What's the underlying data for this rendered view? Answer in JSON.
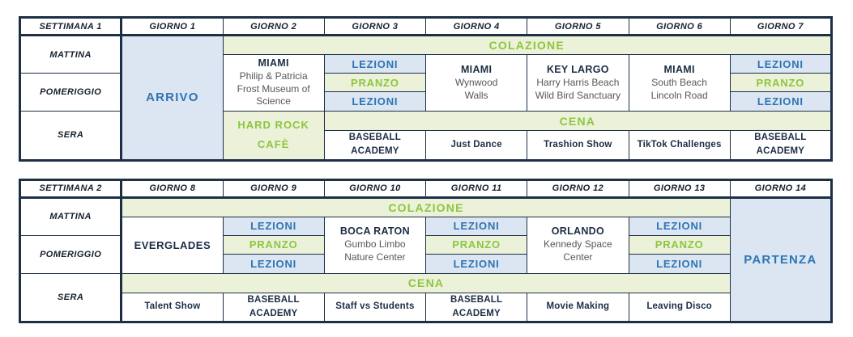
{
  "labels": {
    "lezioni": "LEZIONI",
    "pranzo": "PRANZO",
    "colazione": "COLAZIONE",
    "cena": "CENA"
  },
  "times": [
    "MATTINA",
    "POMERIGGIO",
    "SERA"
  ],
  "week1": {
    "header": [
      "SETTIMANA 1",
      "GIORNO 1",
      "GIORNO 2",
      "GIORNO 3",
      "GIORNO 4",
      "GIORNO 5",
      "GIORNO 6",
      "GIORNO 7"
    ],
    "arrival": "ARRIVO",
    "day2": {
      "title": "MIAMI",
      "subtitle_lines": [
        "Philip & Patricia",
        "Frost Museum of",
        "Science"
      ],
      "evening_lines": [
        "HARD ROCK",
        "CAFÈ"
      ]
    },
    "day3": {
      "evening_lines": [
        "BASEBALL",
        "ACADEMY"
      ]
    },
    "day4": {
      "title": "MIAMI",
      "subtitle_lines": [
        "Wynwood",
        "Walls"
      ],
      "evening": "Just Dance"
    },
    "day5": {
      "title": "KEY LARGO",
      "subtitle_lines": [
        "Harry Harris Beach",
        "Wild Bird Sanctuary"
      ],
      "evening": "Trashion Show"
    },
    "day6": {
      "title": "MIAMI",
      "subtitle_lines": [
        "South Beach",
        "Lincoln Road"
      ],
      "evening": "TikTok Challenges"
    },
    "day7": {
      "evening_lines": [
        "BASEBALL",
        "ACADEMY"
      ]
    }
  },
  "week2": {
    "header": [
      "SETTIMANA 2",
      "GIORNO 8",
      "GIORNO 9",
      "GIORNO 10",
      "GIORNO 11",
      "GIORNO 12",
      "GIORNO 13",
      "GIORNO 14"
    ],
    "departure": "PARTENZA",
    "day8": {
      "title": "EVERGLADES",
      "evening": "Talent Show"
    },
    "day9": {
      "evening": "BASEBALL ACADEMY"
    },
    "day10": {
      "title": "BOCA RATON",
      "subtitle_lines": [
        "Gumbo Limbo",
        "Nature Center"
      ],
      "evening": "Staff vs Students"
    },
    "day11": {
      "evening_lines": [
        "BASEBALL",
        "ACADEMY"
      ]
    },
    "day12": {
      "title": "ORLANDO",
      "subtitle_lines": [
        "Kennedy Space",
        "Center"
      ],
      "evening": "Movie Making"
    },
    "day13": {
      "evening": "Leaving Disco"
    }
  },
  "colors": {
    "border": "#1c2f45",
    "blue_text": "#2e74b5",
    "green_text": "#8cc63e",
    "light_blue_bg": "#dbe6f2",
    "light_green_bg": "#ecf1da",
    "title_text": "#1c2e45",
    "subtitle_text": "#575757"
  }
}
